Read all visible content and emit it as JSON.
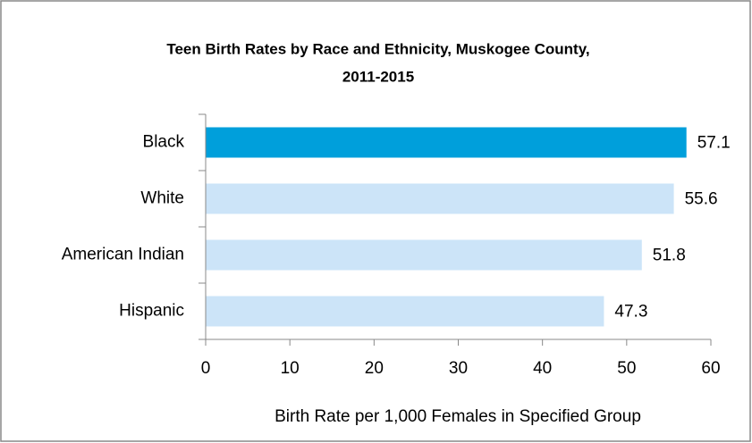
{
  "chart_data": {
    "type": "bar",
    "orientation": "horizontal",
    "title": [
      "Teen Birth Rates by Race and Ethnicity, Muskogee County,",
      "2011-2015"
    ],
    "x_label": "Birth Rate per 1,000 Females in Specified Group",
    "categories": [
      "Black",
      "White",
      "American Indian",
      "Hispanic"
    ],
    "values": [
      57.1,
      55.6,
      51.8,
      47.3
    ],
    "colors": [
      "#009fdb",
      "#cce4f8",
      "#cce4f8",
      "#cce4f8"
    ],
    "xlim": [
      0,
      60
    ],
    "xticks": [
      0,
      10,
      20,
      30,
      40,
      50,
      60
    ],
    "grid": false
  }
}
